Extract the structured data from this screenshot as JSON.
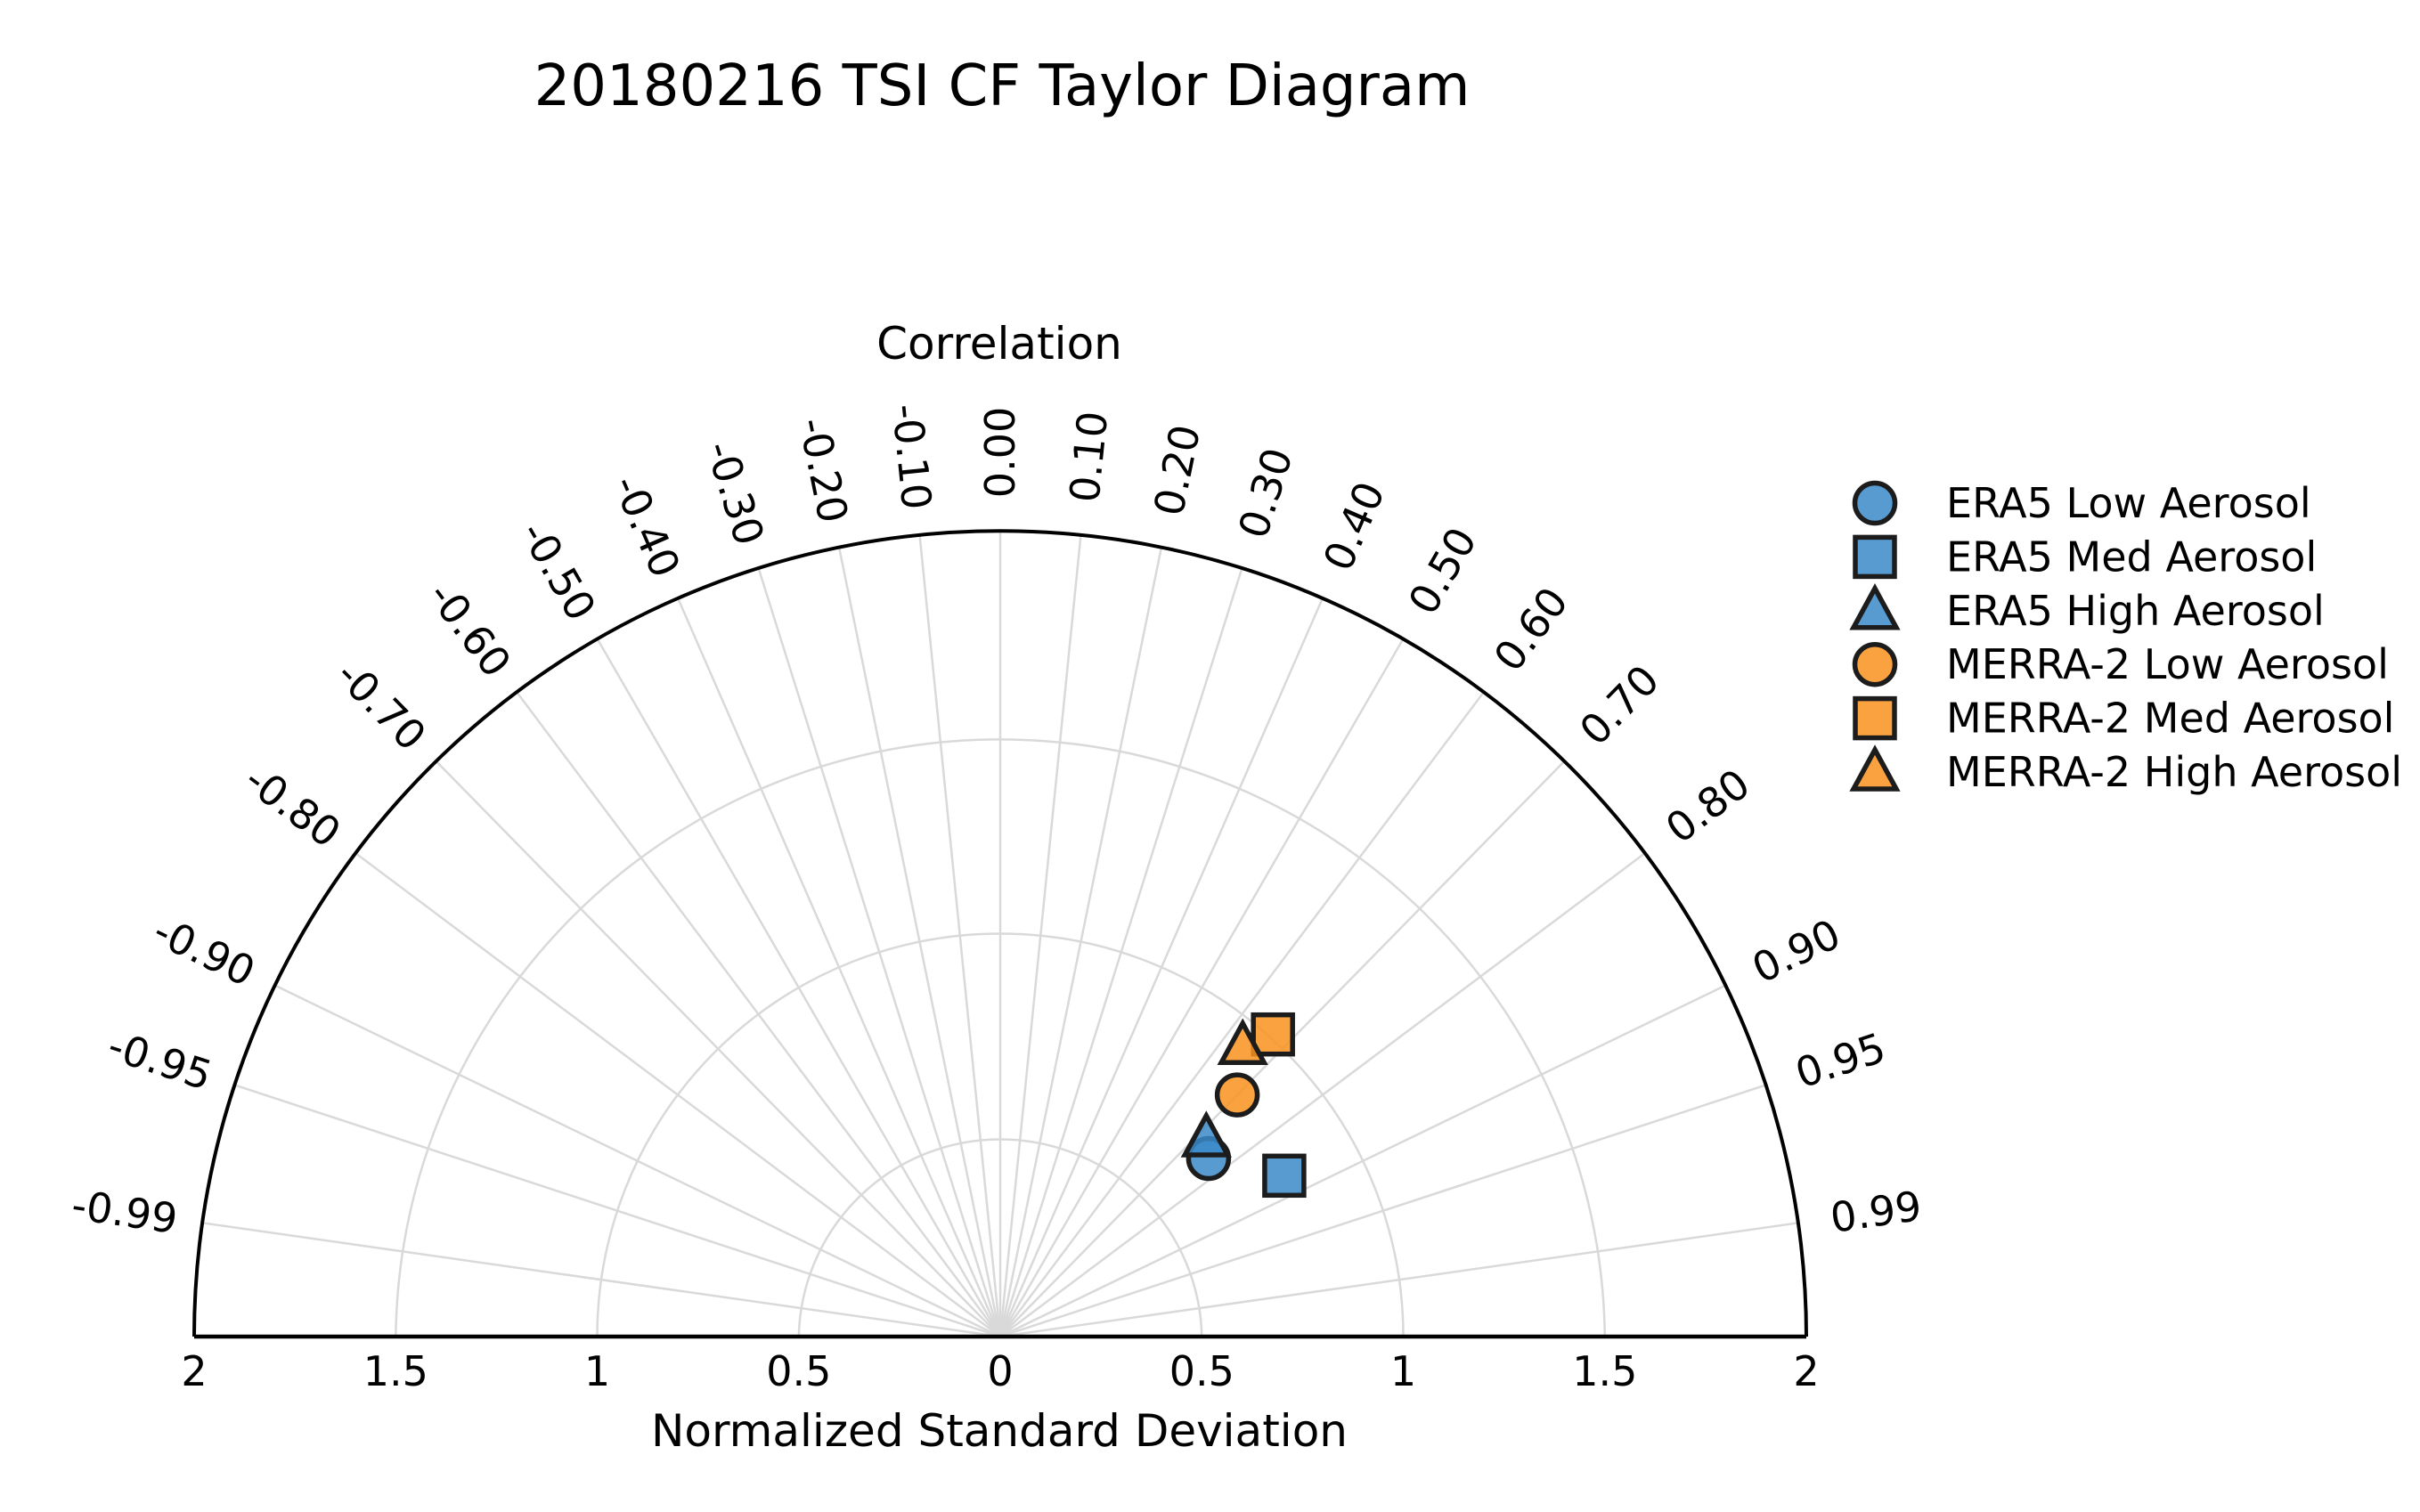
{
  "title": "20180216 TSI CF Taylor Diagram",
  "chart_data": {
    "type": "scatter",
    "subtype": "taylor-diagram",
    "title": "20180216 TSI CF Taylor Diagram",
    "angular_axis_label": "Correlation",
    "radial_axis_label": "Normalized Standard Deviation",
    "correlation_ticks": [
      -0.99,
      -0.95,
      -0.9,
      -0.8,
      -0.7,
      -0.6,
      -0.5,
      -0.4,
      -0.3,
      -0.2,
      -0.1,
      0.0,
      0.1,
      0.2,
      0.3,
      0.4,
      0.5,
      0.6,
      0.7,
      0.8,
      0.9,
      0.95,
      0.99
    ],
    "correlation_tick_labels": [
      "-0.99",
      "-0.95",
      "-0.90",
      "-0.80",
      "-0.70",
      "-0.60",
      "-0.50",
      "-0.40",
      "-0.30",
      "-0.20",
      "-0.10",
      "0.00",
      "0.10",
      "0.20",
      "0.30",
      "0.40",
      "0.50",
      "0.60",
      "0.70",
      "0.80",
      "0.90",
      "0.95",
      "0.99"
    ],
    "std_tick_values": [
      -2,
      -1.5,
      -1,
      -0.5,
      0,
      0.5,
      1,
      1.5,
      2
    ],
    "std_tick_labels": [
      "2",
      "1.5",
      "1",
      "0.5",
      "0",
      "0.5",
      "1",
      "1.5",
      "2"
    ],
    "std_grid_arcs": [
      0.5,
      1.0,
      1.5
    ],
    "std_max": 2.0,
    "grid_on": true,
    "legend_position": "upper right outside",
    "series": [
      {
        "name": "ERA5 Low Aerosol",
        "marker": "circle",
        "color": "#3a89c9",
        "std": 0.68,
        "corr": 0.76
      },
      {
        "name": "ERA5 Med Aerosol",
        "marker": "square",
        "color": "#3a89c9",
        "std": 0.81,
        "corr": 0.87
      },
      {
        "name": "ERA5 High Aerosol",
        "marker": "triangle",
        "color": "#3a89c9",
        "std": 0.71,
        "corr": 0.72
      },
      {
        "name": "MERRA-2 Low Aerosol",
        "marker": "circle",
        "color": "#f9921e",
        "std": 0.84,
        "corr": 0.7
      },
      {
        "name": "MERRA-2 Med Aerosol",
        "marker": "square",
        "color": "#f9921e",
        "std": 1.01,
        "corr": 0.67
      },
      {
        "name": "MERRA-2 High Aerosol",
        "marker": "triangle",
        "color": "#f9921e",
        "std": 0.94,
        "corr": 0.64
      }
    ],
    "colors": {
      "era5": "#3a89c9",
      "merra2": "#f9921e",
      "marker_edge": "#1c1c1c",
      "grid": "#d9d9d9",
      "axis": "#000000",
      "background": "#ffffff"
    }
  },
  "legend": {
    "items": [
      {
        "label": "ERA5 Low Aerosol",
        "marker": "circle",
        "color": "#3a89c9"
      },
      {
        "label": "ERA5 Med Aerosol",
        "marker": "square",
        "color": "#3a89c9"
      },
      {
        "label": "ERA5 High Aerosol",
        "marker": "triangle",
        "color": "#3a89c9"
      },
      {
        "label": "MERRA-2 Low Aerosol",
        "marker": "circle",
        "color": "#f9921e"
      },
      {
        "label": "MERRA-2 Med Aerosol",
        "marker": "square",
        "color": "#f9921e"
      },
      {
        "label": "MERRA-2 High Aerosol",
        "marker": "triangle",
        "color": "#f9921e"
      }
    ]
  }
}
